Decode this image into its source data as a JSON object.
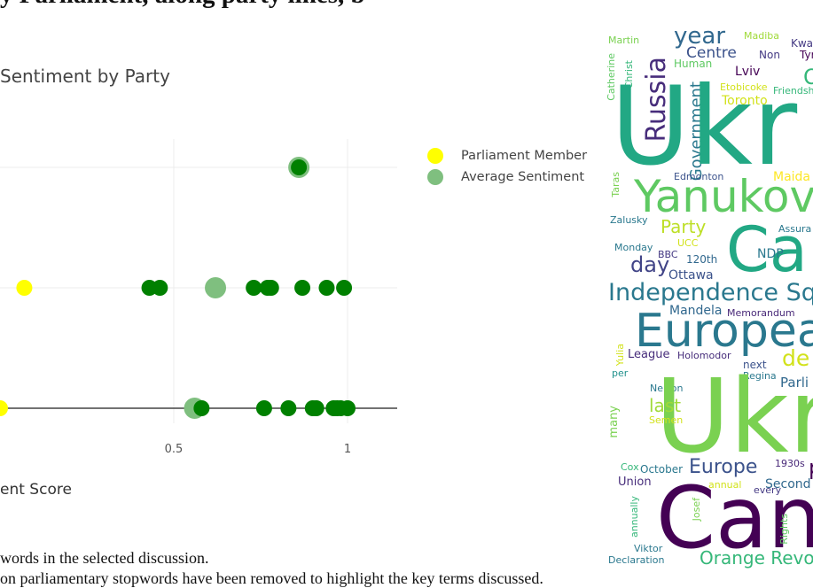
{
  "heading": {
    "text": "y Parliament, along party lines, b"
  },
  "chart": {
    "title": "Sentiment by Party",
    "x_axis_title": "ent Score",
    "tick_labels": [
      "0.5",
      "1"
    ],
    "legend": [
      {
        "label": "Parliament Member",
        "color": "#ffff00"
      },
      {
        "label": "Average Sentiment",
        "color": "#7fbf7f"
      }
    ]
  },
  "chart_data": {
    "type": "scatter",
    "title": "Sentiment by Party",
    "xlabel": "ent Score",
    "ylabel": "",
    "xlim": [
      -0.02,
      1.25
    ],
    "x_ticks": [
      0.5,
      1
    ],
    "grid": true,
    "legend_position": "right",
    "rows": [
      {
        "row": 1,
        "members": [
          0.86
        ],
        "average": 0.86
      },
      {
        "row": 2,
        "members": [
          0.07,
          0.43,
          0.46,
          0.73,
          0.77,
          0.78,
          0.87,
          0.94,
          0.99
        ],
        "average": 0.62
      },
      {
        "row": 3,
        "members": [
          0.0,
          0.58,
          0.76,
          0.83,
          0.9,
          0.91,
          0.96,
          0.97,
          0.98,
          1.0
        ],
        "average": 0.56
      }
    ],
    "member_color_first": "#ffff00",
    "member_color": "#008000",
    "average_color": "#7fbf7f"
  },
  "captions": [
    "words in the selected discussion.",
    "on parliamentary stopwords have been removed to highlight the key terms discussed."
  ],
  "wordcloud": {
    "words": [
      {
        "text": "Martin",
        "c": "#7ad151"
      },
      {
        "text": "year",
        "c": "#31688e"
      },
      {
        "text": "Madiba",
        "c": "#a0da39"
      },
      {
        "text": "Kwas",
        "c": "#443983"
      },
      {
        "text": "Centre",
        "c": "#3b528b"
      },
      {
        "text": "Non",
        "c": "#443983"
      },
      {
        "text": "Tyr",
        "c": "#440154"
      },
      {
        "text": "Human",
        "c": "#5ec962"
      },
      {
        "text": "Lviv",
        "c": "#440154"
      },
      {
        "text": "O",
        "c": "#35b779"
      },
      {
        "text": "Catherine",
        "c": "#5ec962"
      },
      {
        "text": "Christ",
        "c": "#35b779"
      },
      {
        "text": "Russia",
        "c": "#472d7b"
      },
      {
        "text": "Government",
        "c": "#2a788e"
      },
      {
        "text": "Etobicoke",
        "c": "#d2e21b"
      },
      {
        "text": "Friendsh",
        "c": "#35b779"
      },
      {
        "text": "Toronto",
        "c": "#d2e21b"
      },
      {
        "text": "Ukr",
        "c": "#22a884"
      },
      {
        "text": "Edmonton",
        "c": "#3b528b"
      },
      {
        "text": "Maida",
        "c": "#fde725"
      },
      {
        "text": "Taras",
        "c": "#7ad151"
      },
      {
        "text": "Yanukov",
        "c": "#5ec962"
      },
      {
        "text": "Zalusky",
        "c": "#2a788e"
      },
      {
        "text": "Party",
        "c": "#bddf26"
      },
      {
        "text": "Assura",
        "c": "#2a788e"
      },
      {
        "text": "UCC",
        "c": "#d2e21b"
      },
      {
        "text": "Ca",
        "c": "#22a884"
      },
      {
        "text": "NDP",
        "c": "#2a788e"
      },
      {
        "text": "Monday",
        "c": "#2a788e"
      },
      {
        "text": "BBC",
        "c": "#443983"
      },
      {
        "text": "120th",
        "c": "#31688e"
      },
      {
        "text": "day",
        "c": "#414487"
      },
      {
        "text": "Ottawa",
        "c": "#3b528b"
      },
      {
        "text": "Independence Sq",
        "c": "#2a788e"
      },
      {
        "text": "Mandela",
        "c": "#31688e"
      },
      {
        "text": "Memorandum",
        "c": "#482878"
      },
      {
        "text": "Europea",
        "c": "#2a788e"
      },
      {
        "text": "Yulia",
        "c": "#d2e21b"
      },
      {
        "text": "League",
        "c": "#472d7b"
      },
      {
        "text": "Holomodor",
        "c": "#472d7b"
      },
      {
        "text": "de",
        "c": "#d2e21b"
      },
      {
        "text": "per",
        "c": "#21918c"
      },
      {
        "text": "next",
        "c": "#3b528b"
      },
      {
        "text": "Regina",
        "c": "#2a788e"
      },
      {
        "text": "Parli",
        "c": "#31688e"
      },
      {
        "text": "Nelson",
        "c": "#2a788e"
      },
      {
        "text": "Ukr",
        "c": "#7ad151"
      },
      {
        "text": "last",
        "c": "#a0da39"
      },
      {
        "text": "Semen",
        "c": "#d2e21b"
      },
      {
        "text": "many",
        "c": "#7ad151"
      },
      {
        "text": "Cox",
        "c": "#35b779"
      },
      {
        "text": "October",
        "c": "#2a788e"
      },
      {
        "text": "Europe",
        "c": "#3b528b"
      },
      {
        "text": "1930s",
        "c": "#482878"
      },
      {
        "text": "p",
        "c": "#440154"
      },
      {
        "text": "Union",
        "c": "#472d7b"
      },
      {
        "text": "annual",
        "c": "#d2e21b"
      },
      {
        "text": "every",
        "c": "#443983"
      },
      {
        "text": "Second",
        "c": "#31688e"
      },
      {
        "text": "annually",
        "c": "#35b779"
      },
      {
        "text": "Josef",
        "c": "#7ad151"
      },
      {
        "text": "Can",
        "c": "#440154"
      },
      {
        "text": "Rights",
        "c": "#5ec962"
      },
      {
        "text": "Viktor",
        "c": "#2a788e"
      },
      {
        "text": "Declaration",
        "c": "#2a788e"
      },
      {
        "text": "Orange Revo",
        "c": "#35b779"
      }
    ]
  }
}
